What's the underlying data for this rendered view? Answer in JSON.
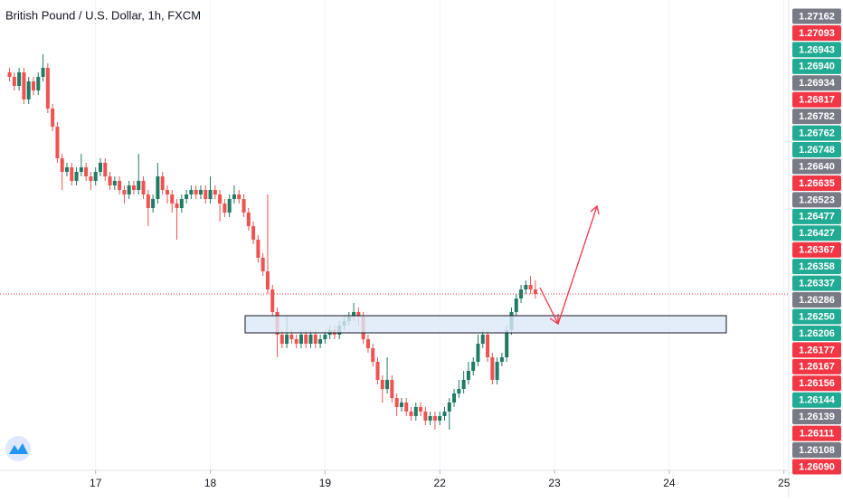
{
  "chart_data": {
    "type": "candlestick",
    "title": "British Pound / U.S. Dollar, 1h, FXCM",
    "up_color": "#1f7a66",
    "down_color": "#ef5350",
    "xlim": [
      4,
      169
    ],
    "xticks": [
      {
        "value": 24,
        "label": "17"
      },
      {
        "value": 48,
        "label": "18"
      },
      {
        "value": 72,
        "label": "19"
      },
      {
        "value": 96,
        "label": "22"
      },
      {
        "value": 120,
        "label": "23"
      },
      {
        "value": 144,
        "label": "24"
      },
      {
        "value": 168,
        "label": "25"
      }
    ],
    "ylim": [
      1.2601,
      1.2705
    ],
    "x": [
      6,
      7,
      8,
      9,
      10,
      11,
      12,
      13,
      14,
      15,
      16,
      17,
      18,
      19,
      20,
      21,
      22,
      23,
      24,
      25,
      26,
      27,
      28,
      29,
      30,
      31,
      32,
      33,
      34,
      35,
      36,
      37,
      38,
      39,
      40,
      41,
      42,
      43,
      44,
      45,
      46,
      47,
      48,
      49,
      50,
      51,
      52,
      53,
      54,
      55,
      56,
      57,
      58,
      59,
      60,
      61,
      62,
      63,
      64,
      65,
      66,
      67,
      68,
      69,
      70,
      71,
      72,
      73,
      74,
      75,
      76,
      77,
      78,
      79,
      80,
      81,
      82,
      83,
      84,
      85,
      86,
      87,
      88,
      89,
      90,
      91,
      92,
      93,
      94,
      95,
      96,
      97,
      98,
      99,
      100,
      101,
      102,
      103,
      104,
      105,
      106,
      107,
      108,
      109,
      110,
      111,
      112,
      113,
      114,
      115,
      116
    ],
    "ohlc": [
      [
        1.2689,
        1.269,
        1.2687,
        1.2688
      ],
      [
        1.2688,
        1.2689,
        1.2685,
        1.2686
      ],
      [
        1.2686,
        1.269,
        1.2685,
        1.2689
      ],
      [
        1.2689,
        1.269,
        1.2682,
        1.2683
      ],
      [
        1.2683,
        1.2688,
        1.2682,
        1.2687
      ],
      [
        1.2687,
        1.2688,
        1.2684,
        1.2685
      ],
      [
        1.2685,
        1.2689,
        1.2684,
        1.2688
      ],
      [
        1.2688,
        1.2693,
        1.2687,
        1.269
      ],
      [
        1.269,
        1.2691,
        1.268,
        1.2681
      ],
      [
        1.2681,
        1.2682,
        1.2676,
        1.2677
      ],
      [
        1.2677,
        1.2678,
        1.2669,
        1.267
      ],
      [
        1.267,
        1.2671,
        1.2663,
        1.2667
      ],
      [
        1.2667,
        1.2669,
        1.2666,
        1.2668
      ],
      [
        1.2668,
        1.2669,
        1.2664,
        1.2665
      ],
      [
        1.2665,
        1.2668,
        1.2664,
        1.2667
      ],
      [
        1.2667,
        1.2671,
        1.2666,
        1.2668
      ],
      [
        1.2668,
        1.2669,
        1.2665,
        1.2666
      ],
      [
        1.2666,
        1.2667,
        1.2663,
        1.2665
      ],
      [
        1.2665,
        1.2668,
        1.2664,
        1.2667
      ],
      [
        1.2667,
        1.267,
        1.2666,
        1.2669
      ],
      [
        1.2669,
        1.267,
        1.2665,
        1.2666
      ],
      [
        1.2666,
        1.2667,
        1.2663,
        1.2664
      ],
      [
        1.2664,
        1.2666,
        1.2663,
        1.2665
      ],
      [
        1.2665,
        1.2666,
        1.2662,
        1.2663
      ],
      [
        1.2663,
        1.2664,
        1.266,
        1.2662
      ],
      [
        1.2662,
        1.2665,
        1.2661,
        1.2664
      ],
      [
        1.2664,
        1.2665,
        1.2662,
        1.2663
      ],
      [
        1.2663,
        1.2671,
        1.2662,
        1.2665
      ],
      [
        1.2665,
        1.2666,
        1.2661,
        1.2662
      ],
      [
        1.2662,
        1.2663,
        1.2655,
        1.2659
      ],
      [
        1.2659,
        1.2662,
        1.2658,
        1.2661
      ],
      [
        1.2661,
        1.2669,
        1.266,
        1.2666
      ],
      [
        1.2666,
        1.2667,
        1.2662,
        1.2663
      ],
      [
        1.2663,
        1.2664,
        1.266,
        1.2662
      ],
      [
        1.2662,
        1.2663,
        1.2658,
        1.266
      ],
      [
        1.266,
        1.2661,
        1.2652,
        1.2659
      ],
      [
        1.2659,
        1.2662,
        1.2658,
        1.2661
      ],
      [
        1.2661,
        1.2663,
        1.266,
        1.2662
      ],
      [
        1.2662,
        1.2664,
        1.2661,
        1.2663
      ],
      [
        1.2663,
        1.2664,
        1.2661,
        1.2662
      ],
      [
        1.2662,
        1.2664,
        1.2661,
        1.2663
      ],
      [
        1.2663,
        1.2664,
        1.266,
        1.2661
      ],
      [
        1.2661,
        1.2666,
        1.266,
        1.2663
      ],
      [
        1.2663,
        1.2664,
        1.2661,
        1.2662
      ],
      [
        1.2662,
        1.2663,
        1.2656,
        1.266
      ],
      [
        1.266,
        1.2661,
        1.2657,
        1.2658
      ],
      [
        1.2658,
        1.2662,
        1.2657,
        1.2661
      ],
      [
        1.2661,
        1.2664,
        1.266,
        1.2662
      ],
      [
        1.2662,
        1.2663,
        1.266,
        1.2661
      ],
      [
        1.2661,
        1.2662,
        1.2657,
        1.2658
      ],
      [
        1.2658,
        1.2659,
        1.2654,
        1.2655
      ],
      [
        1.2655,
        1.2656,
        1.2651,
        1.2652
      ],
      [
        1.2652,
        1.2653,
        1.2647,
        1.2648
      ],
      [
        1.2648,
        1.2649,
        1.2644,
        1.2645
      ],
      [
        1.2645,
        1.2662,
        1.264,
        1.2641
      ],
      [
        1.2641,
        1.2642,
        1.2635,
        1.2636
      ],
      [
        1.2636,
        1.2637,
        1.2626,
        1.2631
      ],
      [
        1.2631,
        1.2632,
        1.2628,
        1.2629
      ],
      [
        1.2629,
        1.2635,
        1.2628,
        1.2631
      ],
      [
        1.2631,
        1.2632,
        1.2629,
        1.263
      ],
      [
        1.263,
        1.2631,
        1.2628,
        1.2629
      ],
      [
        1.2629,
        1.2632,
        1.2628,
        1.2631
      ],
      [
        1.2631,
        1.2632,
        1.2628,
        1.2629
      ],
      [
        1.2629,
        1.2632,
        1.2628,
        1.2631
      ],
      [
        1.2631,
        1.2632,
        1.2628,
        1.2629
      ],
      [
        1.2629,
        1.2631,
        1.2628,
        1.263
      ],
      [
        1.263,
        1.2632,
        1.2629,
        1.2631
      ],
      [
        1.2631,
        1.2633,
        1.263,
        1.2632
      ],
      [
        1.2632,
        1.2633,
        1.263,
        1.2631
      ],
      [
        1.2631,
        1.2634,
        1.263,
        1.2633
      ],
      [
        1.2633,
        1.2635,
        1.2632,
        1.2634
      ],
      [
        1.2634,
        1.2636,
        1.2633,
        1.2635
      ],
      [
        1.2635,
        1.2638,
        1.2634,
        1.2636
      ],
      [
        1.2636,
        1.2637,
        1.2633,
        1.2635
      ],
      [
        1.2635,
        1.2636,
        1.2629,
        1.263
      ],
      [
        1.263,
        1.2631,
        1.2627,
        1.2628
      ],
      [
        1.2628,
        1.2629,
        1.2624,
        1.2625
      ],
      [
        1.2625,
        1.2626,
        1.262,
        1.2621
      ],
      [
        1.2621,
        1.2622,
        1.2616,
        1.2619
      ],
      [
        1.2619,
        1.2626,
        1.2618,
        1.2621
      ],
      [
        1.2621,
        1.2622,
        1.2616,
        1.2617
      ],
      [
        1.2617,
        1.2618,
        1.2613,
        1.2615
      ],
      [
        1.2615,
        1.2617,
        1.2614,
        1.2616
      ],
      [
        1.2616,
        1.2617,
        1.2613,
        1.2614
      ],
      [
        1.2614,
        1.2615,
        1.2612,
        1.2613
      ],
      [
        1.2613,
        1.2616,
        1.2612,
        1.2615
      ],
      [
        1.2615,
        1.2616,
        1.2613,
        1.2614
      ],
      [
        1.2614,
        1.2615,
        1.2611,
        1.2612
      ],
      [
        1.2612,
        1.2614,
        1.2611,
        1.2613
      ],
      [
        1.2613,
        1.2614,
        1.261,
        1.2612
      ],
      [
        1.2612,
        1.2614,
        1.2611,
        1.2613
      ],
      [
        1.2613,
        1.2615,
        1.2612,
        1.2614
      ],
      [
        1.2614,
        1.2617,
        1.261,
        1.2616
      ],
      [
        1.2616,
        1.2619,
        1.2615,
        1.2618
      ],
      [
        1.2618,
        1.2621,
        1.2617,
        1.2619
      ],
      [
        1.2619,
        1.2623,
        1.2618,
        1.2621
      ],
      [
        1.2621,
        1.2625,
        1.262,
        1.2623
      ],
      [
        1.2623,
        1.2626,
        1.2622,
        1.2625
      ],
      [
        1.2625,
        1.2631,
        1.2624,
        1.2629
      ],
      [
        1.2629,
        1.2632,
        1.2628,
        1.2631
      ],
      [
        1.2631,
        1.2632,
        1.2625,
        1.2626
      ],
      [
        1.2626,
        1.2627,
        1.262,
        1.2621
      ],
      [
        1.2621,
        1.2626,
        1.262,
        1.2625
      ],
      [
        1.2625,
        1.2627,
        1.2624,
        1.2626
      ],
      [
        1.2626,
        1.2633,
        1.2625,
        1.2632
      ],
      [
        1.2632,
        1.2637,
        1.2631,
        1.2636
      ],
      [
        1.2636,
        1.264,
        1.2635,
        1.2639
      ],
      [
        1.2639,
        1.2642,
        1.2638,
        1.2641
      ],
      [
        1.2641,
        1.2643,
        1.264,
        1.2642
      ],
      [
        1.2642,
        1.2644,
        1.264,
        1.2641
      ],
      [
        1.2641,
        1.2643,
        1.2639,
        1.264
      ]
    ],
    "price_badges": [
      {
        "text": "1.27162",
        "color": "#787b86"
      },
      {
        "text": "1.27093",
        "color": "#f23645"
      },
      {
        "text": "1.26943",
        "color": "#22ab94"
      },
      {
        "text": "1.26940",
        "color": "#22ab94"
      },
      {
        "text": "1.26934",
        "color": "#787b86"
      },
      {
        "text": "1.26817",
        "color": "#f23645"
      },
      {
        "text": "1.26782",
        "color": "#787b86"
      },
      {
        "text": "1.26762",
        "color": "#22ab94"
      },
      {
        "text": "1.26748",
        "color": "#22ab94"
      },
      {
        "text": "1.26640",
        "color": "#787b86"
      },
      {
        "text": "1.26635",
        "color": "#f23645"
      },
      {
        "text": "1.26523",
        "color": "#787b86"
      },
      {
        "text": "1.26477",
        "color": "#22ab94"
      },
      {
        "text": "1.26427",
        "color": "#22ab94"
      },
      {
        "text": "1.26367",
        "color": "#f23645"
      },
      {
        "text": "1.26358",
        "color": "#22ab94"
      },
      {
        "text": "1.26337",
        "color": "#22ab94"
      },
      {
        "text": "1.26286",
        "color": "#787b86"
      },
      {
        "text": "1.26250",
        "color": "#22ab94"
      },
      {
        "text": "1.26206",
        "color": "#22ab94"
      },
      {
        "text": "1.26177",
        "color": "#f23645"
      },
      {
        "text": "1.26167",
        "color": "#f23645"
      },
      {
        "text": "1.26156",
        "color": "#f23645"
      },
      {
        "text": "1.26144",
        "color": "#22ab94"
      },
      {
        "text": "1.26139",
        "color": "#787b86"
      },
      {
        "text": "1.26111",
        "color": "#f23645"
      },
      {
        "text": "1.26108",
        "color": "#787b86"
      },
      {
        "text": "1.26090",
        "color": "#f23645"
      }
    ]
  }
}
